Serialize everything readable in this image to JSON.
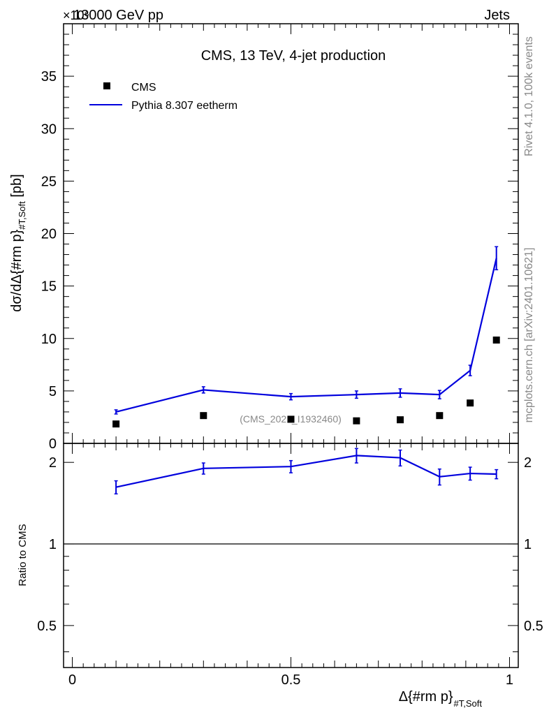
{
  "header": {
    "energy_label": "13000 GeV pp",
    "process_label": "Jets",
    "exponent_label": "×10⁶"
  },
  "side_labels": {
    "rivet": "Rivet 4.1.0,  100k events",
    "mcplots": "mcplots.cern.ch [arXiv:2401.10621]"
  },
  "watermark": "(CMS_2021_I1932460)",
  "colors": {
    "mc": "#0000dd",
    "data": "#000000",
    "frame": "#000000",
    "side_text": "#888888"
  },
  "chart_data": [
    {
      "type": "scatter",
      "title": "CMS, 13 TeV, 4-jet production",
      "xlabel": "Δ{#rm p}",
      "xlabel_sub": "#T,Soft",
      "ylabel": "dσ/dΔ{#rm p}",
      "ylabel_sub": "#T,Soft",
      "ylabel_unit": "[pb]",
      "xlim": [
        -0.02,
        1.02
      ],
      "ylim": [
        0,
        40
      ],
      "yticks": [
        0,
        5,
        10,
        15,
        20,
        25,
        30,
        35
      ],
      "ytick_labels": [
        "0",
        "5",
        "10",
        "15",
        "20",
        "25",
        "30",
        "35"
      ],
      "legend": {
        "placement": "top-left",
        "entries": [
          "CMS",
          "Pythia 8.307 eetherm"
        ]
      },
      "series": [
        {
          "name": "CMS",
          "style": "markers",
          "x": [
            0.1,
            0.3,
            0.5,
            0.65,
            0.75,
            0.84,
            0.91,
            0.97
          ],
          "y": [
            1.85,
            2.65,
            2.3,
            2.15,
            2.25,
            2.65,
            3.85,
            9.85
          ]
        },
        {
          "name": "Pythia 8.307 eetherm",
          "style": "line",
          "x": [
            0.1,
            0.3,
            0.5,
            0.65,
            0.75,
            0.84,
            0.91,
            0.97
          ],
          "y": [
            3.0,
            5.1,
            4.45,
            4.65,
            4.8,
            4.65,
            6.95,
            17.65
          ],
          "err": [
            0.2,
            0.3,
            0.3,
            0.35,
            0.4,
            0.4,
            0.5,
            1.1
          ]
        }
      ]
    },
    {
      "type": "line",
      "title": "",
      "xlabel": "Δ{#rm p}",
      "xlabel_sub": "#T,Soft",
      "ylabel": "Ratio to CMS",
      "xlim": [
        -0.02,
        1.02
      ],
      "ylim": [
        0.35,
        2.35
      ],
      "y_scale": "log",
      "xticks": [
        0,
        0.5,
        1
      ],
      "xtick_labels": [
        "0",
        "0.5",
        "1"
      ],
      "yticks": [
        0.5,
        1,
        2
      ],
      "ytick_labels": [
        "0.5",
        "1",
        "2"
      ],
      "reference_line": 1,
      "series": [
        {
          "name": "Pythia 8.307 eetherm",
          "style": "line",
          "x": [
            0.1,
            0.3,
            0.5,
            0.65,
            0.75,
            0.84,
            0.91,
            0.97
          ],
          "y": [
            1.62,
            1.9,
            1.93,
            2.12,
            2.08,
            1.77,
            1.82,
            1.81
          ],
          "err_low": [
            0.09,
            0.09,
            0.1,
            0.13,
            0.14,
            0.12,
            0.1,
            0.07
          ],
          "err_high": [
            0.09,
            0.09,
            0.1,
            0.13,
            0.14,
            0.12,
            0.1,
            0.07
          ]
        }
      ]
    }
  ]
}
